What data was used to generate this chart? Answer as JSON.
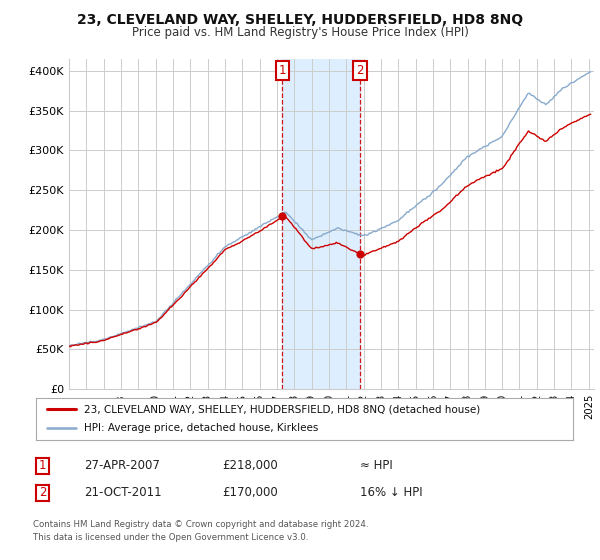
{
  "title": "23, CLEVELAND WAY, SHELLEY, HUDDERSFIELD, HD8 8NQ",
  "subtitle": "Price paid vs. HM Land Registry's House Price Index (HPI)",
  "ylabel_ticks": [
    "£0",
    "£50K",
    "£100K",
    "£150K",
    "£200K",
    "£250K",
    "£300K",
    "£350K",
    "£400K"
  ],
  "ytick_vals": [
    0,
    50000,
    100000,
    150000,
    200000,
    250000,
    300000,
    350000,
    400000
  ],
  "ylim": [
    0,
    415000
  ],
  "xlim_start": 1995.0,
  "xlim_end": 2025.3,
  "transaction1": {
    "date_num": 2007.32,
    "price": 218000,
    "label": "1",
    "date_str": "27-APR-2007",
    "price_str": "£218,000",
    "hpi_rel": "≈ HPI"
  },
  "transaction2": {
    "date_num": 2011.8,
    "price": 170000,
    "label": "2",
    "date_str": "21-OCT-2011",
    "price_str": "£170,000",
    "hpi_rel": "16% ↓ HPI"
  },
  "legend_line1": "23, CLEVELAND WAY, SHELLEY, HUDDERSFIELD, HD8 8NQ (detached house)",
  "legend_line2": "HPI: Average price, detached house, Kirklees",
  "footer": "Contains HM Land Registry data © Crown copyright and database right 2024.\nThis data is licensed under the Open Government Licence v3.0.",
  "sale_color": "#cc0000",
  "hpi_color": "#88aacc",
  "highlight_color": "#ddeeff",
  "grid_color": "#cccccc",
  "background_color": "#ffffff"
}
